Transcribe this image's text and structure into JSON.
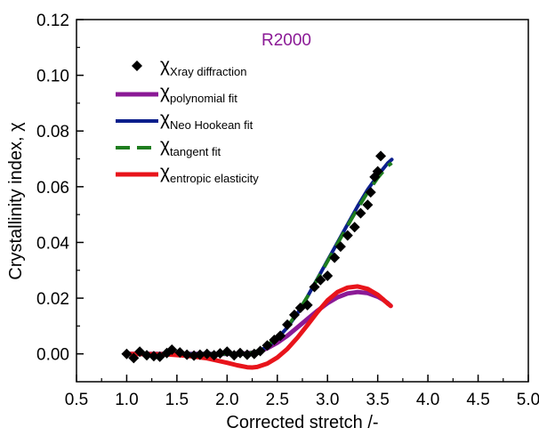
{
  "chart_data": {
    "type": "scatter",
    "annotation": "R2000",
    "xlabel": "Corrected stretch /-",
    "ylabel": "Crystallinity index, χ",
    "xlim": [
      0.5,
      5.0
    ],
    "ylim": [
      -0.01,
      0.12
    ],
    "xticks": [
      "0.5",
      "1.0",
      "1.5",
      "2.0",
      "2.5",
      "3.0",
      "3.5",
      "4.0",
      "4.5",
      "5.0"
    ],
    "yticks": [
      "0.00",
      "0.02",
      "0.04",
      "0.06",
      "0.08",
      "0.10",
      "0.12"
    ],
    "grid": false,
    "legend_position": "top-left",
    "series": [
      {
        "symbol": "χ",
        "name": "Xray diffraction",
        "kind": "markers",
        "marker": "diamond",
        "color": "#000000",
        "points": [
          [
            1.0,
            0.0
          ],
          [
            1.07,
            -0.0015
          ],
          [
            1.13,
            0.0008
          ],
          [
            1.2,
            -0.0005
          ],
          [
            1.27,
            -0.0008
          ],
          [
            1.33,
            -0.001
          ],
          [
            1.4,
            0.0003
          ],
          [
            1.45,
            0.0015
          ],
          [
            1.53,
            0.0005
          ],
          [
            1.6,
            -0.0003
          ],
          [
            1.67,
            -0.0006
          ],
          [
            1.73,
            -0.0003
          ],
          [
            1.8,
            0.0
          ],
          [
            1.87,
            -0.0005
          ],
          [
            1.93,
            0.0002
          ],
          [
            2.0,
            0.0008
          ],
          [
            2.07,
            -0.0005
          ],
          [
            2.13,
            0.0003
          ],
          [
            2.2,
            -0.0003
          ],
          [
            2.27,
            0.0
          ],
          [
            2.33,
            0.001
          ],
          [
            2.4,
            0.003
          ],
          [
            2.47,
            0.005
          ],
          [
            2.53,
            0.0065
          ],
          [
            2.6,
            0.0105
          ],
          [
            2.67,
            0.014
          ],
          [
            2.73,
            0.0165
          ],
          [
            2.8,
            0.0175
          ],
          [
            2.87,
            0.024
          ],
          [
            2.93,
            0.0265
          ],
          [
            3.0,
            0.028
          ],
          [
            3.07,
            0.0345
          ],
          [
            3.13,
            0.0385
          ],
          [
            3.2,
            0.0425
          ],
          [
            3.27,
            0.0455
          ],
          [
            3.33,
            0.0505
          ],
          [
            3.4,
            0.0535
          ],
          [
            3.43,
            0.058
          ],
          [
            3.47,
            0.0635
          ],
          [
            3.5,
            0.0655
          ],
          [
            3.53,
            0.071
          ]
        ]
      },
      {
        "symbol": "χ",
        "name": "polynomial fit",
        "kind": "line",
        "color": "#8B1A96",
        "width": 5,
        "points": [
          [
            1.0,
            0.0
          ],
          [
            1.2,
            0.0
          ],
          [
            1.4,
            0.0
          ],
          [
            1.6,
            0.0
          ],
          [
            1.8,
            0.0
          ],
          [
            2.0,
            0.0
          ],
          [
            2.2,
            0.0002
          ],
          [
            2.3,
            0.0007
          ],
          [
            2.4,
            0.002
          ],
          [
            2.5,
            0.004
          ],
          [
            2.6,
            0.0065
          ],
          [
            2.7,
            0.0095
          ],
          [
            2.8,
            0.0125
          ],
          [
            2.9,
            0.0155
          ],
          [
            3.0,
            0.0182
          ],
          [
            3.1,
            0.0203
          ],
          [
            3.2,
            0.0217
          ],
          [
            3.3,
            0.0222
          ],
          [
            3.4,
            0.0218
          ],
          [
            3.5,
            0.0205
          ],
          [
            3.55,
            0.0195
          ],
          [
            3.6,
            0.0182
          ],
          [
            3.63,
            0.0172
          ]
        ]
      },
      {
        "symbol": "χ",
        "name": "Neo Hookean fit",
        "kind": "line",
        "color": "#0C1F8C",
        "width": 4,
        "points": [
          [
            1.0,
            0.0
          ],
          [
            1.5,
            0.0
          ],
          [
            2.0,
            0.0
          ],
          [
            2.2,
            0.0
          ],
          [
            2.3,
            0.0008
          ],
          [
            2.4,
            0.0025
          ],
          [
            2.5,
            0.0055
          ],
          [
            2.6,
            0.0095
          ],
          [
            2.7,
            0.0145
          ],
          [
            2.8,
            0.0205
          ],
          [
            2.9,
            0.027
          ],
          [
            3.0,
            0.0335
          ],
          [
            3.1,
            0.04
          ],
          [
            3.2,
            0.0465
          ],
          [
            3.3,
            0.053
          ],
          [
            3.4,
            0.059
          ],
          [
            3.5,
            0.064
          ],
          [
            3.6,
            0.0685
          ],
          [
            3.64,
            0.0698
          ]
        ]
      },
      {
        "symbol": "χ",
        "name": "tangent fit",
        "kind": "line",
        "color": "#1E7D1E",
        "width": 4,
        "dash": "18 9",
        "points": [
          [
            1.0,
            0.0
          ],
          [
            1.5,
            0.0
          ],
          [
            2.0,
            0.0
          ],
          [
            2.2,
            0.0
          ],
          [
            2.3,
            0.001
          ],
          [
            2.4,
            0.003
          ],
          [
            2.5,
            0.006
          ],
          [
            2.6,
            0.0098
          ],
          [
            2.7,
            0.0148
          ],
          [
            2.8,
            0.0205
          ],
          [
            2.9,
            0.0268
          ],
          [
            3.0,
            0.0332
          ],
          [
            3.1,
            0.0396
          ],
          [
            3.2,
            0.046
          ],
          [
            3.3,
            0.0522
          ],
          [
            3.4,
            0.058
          ],
          [
            3.5,
            0.0632
          ],
          [
            3.6,
            0.0675
          ],
          [
            3.64,
            0.0685
          ]
        ]
      },
      {
        "symbol": "χ",
        "name": "entropic elasticity",
        "kind": "line",
        "color": "#E8141B",
        "width": 5,
        "points": [
          [
            1.0,
            0.0
          ],
          [
            1.2,
            -0.0001
          ],
          [
            1.4,
            -0.0002
          ],
          [
            1.6,
            -0.0007
          ],
          [
            1.8,
            -0.0016
          ],
          [
            2.0,
            -0.0032
          ],
          [
            2.1,
            -0.0041
          ],
          [
            2.2,
            -0.0048
          ],
          [
            2.25,
            -0.0049
          ],
          [
            2.3,
            -0.0047
          ],
          [
            2.4,
            -0.0035
          ],
          [
            2.5,
            -0.0013
          ],
          [
            2.6,
            0.0018
          ],
          [
            2.7,
            0.0058
          ],
          [
            2.8,
            0.0103
          ],
          [
            2.9,
            0.015
          ],
          [
            3.0,
            0.0192
          ],
          [
            3.1,
            0.0222
          ],
          [
            3.2,
            0.0238
          ],
          [
            3.3,
            0.0242
          ],
          [
            3.4,
            0.0233
          ],
          [
            3.5,
            0.0212
          ],
          [
            3.55,
            0.0197
          ],
          [
            3.6,
            0.018
          ],
          [
            3.63,
            0.0172
          ]
        ]
      }
    ]
  }
}
